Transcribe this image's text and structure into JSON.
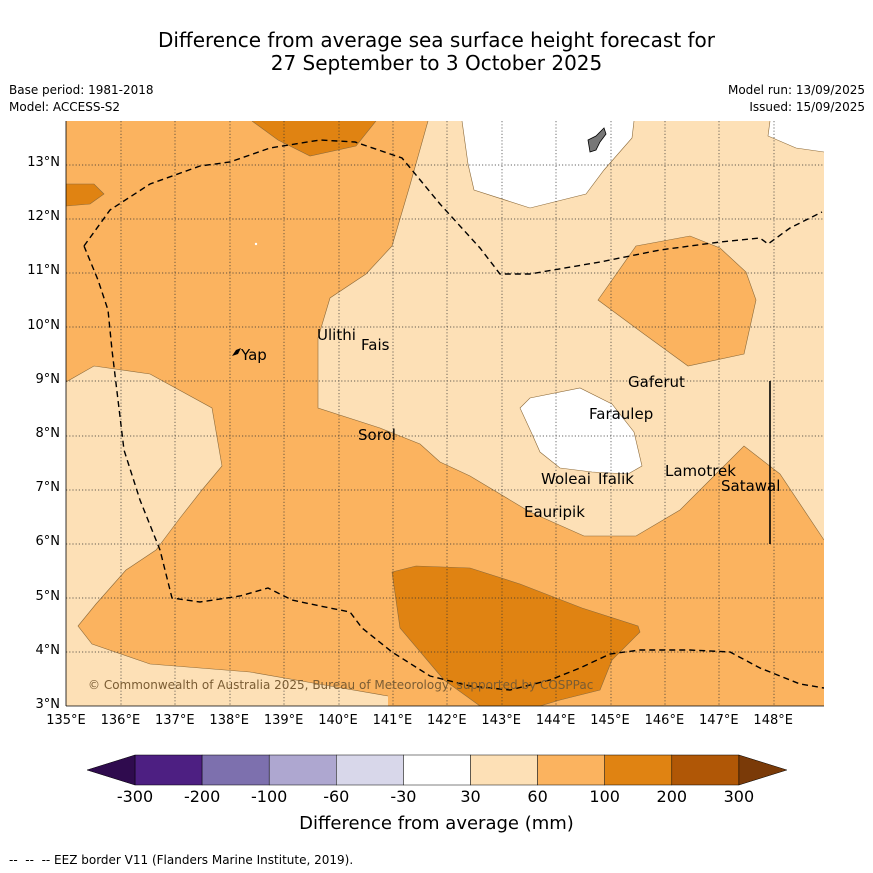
{
  "title_line1": "Difference from average sea surface height forecast for",
  "title_line2": "27 September to 3 October 2025",
  "base_period": "Base period: 1981-2018",
  "model": "Model: ACCESS-S2",
  "model_run": "Model run: 13/09/2025",
  "issued": "Issued: 15/09/2025",
  "copyright": "© Commonwealth of Australia 2025, Bureau of Meteorology, supported by COSPPac",
  "footnote": "--  --  -- EEZ border V11 (Flanders Marine Institute, 2019).",
  "colorbar_label": "Difference from average (mm)",
  "lon_ticks": [
    "135°E",
    "136°E",
    "137°E",
    "138°E",
    "139°E",
    "140°E",
    "141°E",
    "142°E",
    "143°E",
    "144°E",
    "145°E",
    "146°E",
    "147°E",
    "148°E"
  ],
  "lat_ticks": [
    "3°N",
    "4°N",
    "5°N",
    "6°N",
    "7°N",
    "8°N",
    "9°N",
    "10°N",
    "11°N",
    "12°N",
    "13°N"
  ],
  "colorbar_ticks": [
    "-300",
    "-200",
    "-100",
    "-60",
    "-30",
    "30",
    "60",
    "100",
    "200",
    "300"
  ],
  "colorbar_colors": [
    "#4d1f82",
    "#7d70ae",
    "#aea7d0",
    "#d8d7ea",
    "#ffffff",
    "#fde0b6",
    "#fbb35f",
    "#e08312",
    "#b05706"
  ],
  "colorbar_extend_low": "#2f0b4e",
  "colorbar_extend_high": "#7a3a08",
  "places": {
    "yap": "Yap",
    "ulithi": "Ulithi",
    "fais": "Fais",
    "gaferut": "Gaferut",
    "faraulep": "Faraulep",
    "sorol": "Sorol",
    "woleai": "Woleai",
    "ifalik": "Ifalik",
    "lamotrek": "Lamotrek",
    "satawal": "Satawal",
    "eauripik": "Eauripik"
  }
}
